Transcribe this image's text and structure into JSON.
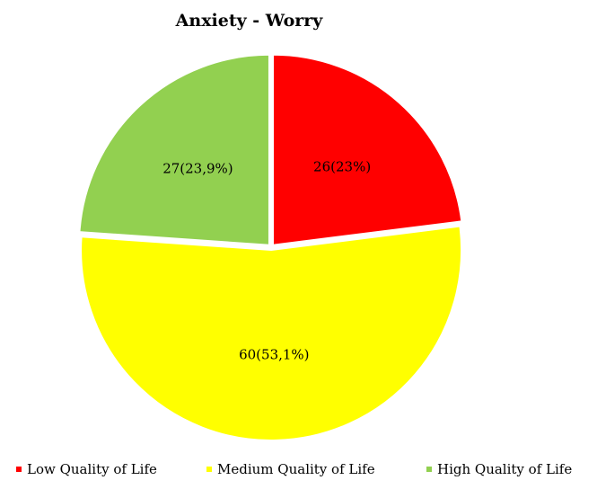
{
  "chart_data": {
    "type": "pie",
    "title": "Anxiety - Worry",
    "categories": [
      "Low Quality of Life",
      "Medium Quality of Life",
      "High Quality of Life"
    ],
    "values": [
      26,
      60,
      27
    ],
    "data_labels": [
      "26(23%)",
      "60(53,1%)",
      "27(23,9%)"
    ],
    "colors": [
      "#ff0000",
      "#ffff00",
      "#92d050"
    ],
    "legend_position": "bottom"
  }
}
